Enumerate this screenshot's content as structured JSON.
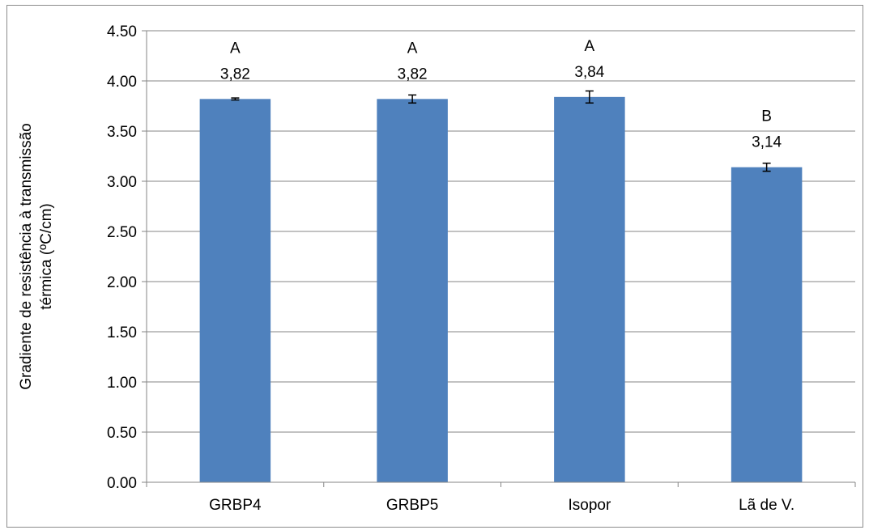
{
  "chart_data": {
    "type": "bar",
    "title": "",
    "xlabel": "",
    "ylabel_lines": [
      "Gradiente de resistência à transmissão",
      "térmica (ºC/cm)"
    ],
    "categories": [
      "GRBP4",
      "GRBP5",
      "Isopor",
      "Lã de V."
    ],
    "values": [
      3.82,
      3.82,
      3.84,
      3.14
    ],
    "value_labels": [
      "3,82",
      "3,82",
      "3,84",
      "3,14"
    ],
    "group_letters": [
      "A",
      "A",
      "A",
      "B"
    ],
    "error": [
      0.01,
      0.04,
      0.06,
      0.04
    ],
    "ylim": [
      0,
      4.5
    ],
    "yticks": [
      0,
      0.5,
      1,
      1.5,
      2,
      2.5,
      3,
      3.5,
      4,
      4.5
    ],
    "ytick_labels": [
      "0.00",
      "0.50",
      "1.00",
      "1.50",
      "2.00",
      "2.50",
      "3.00",
      "3.50",
      "4.00",
      "4.50"
    ],
    "grid": true,
    "legend": "none",
    "bar_color": "#4F81BD",
    "grid_color": "#868686"
  }
}
